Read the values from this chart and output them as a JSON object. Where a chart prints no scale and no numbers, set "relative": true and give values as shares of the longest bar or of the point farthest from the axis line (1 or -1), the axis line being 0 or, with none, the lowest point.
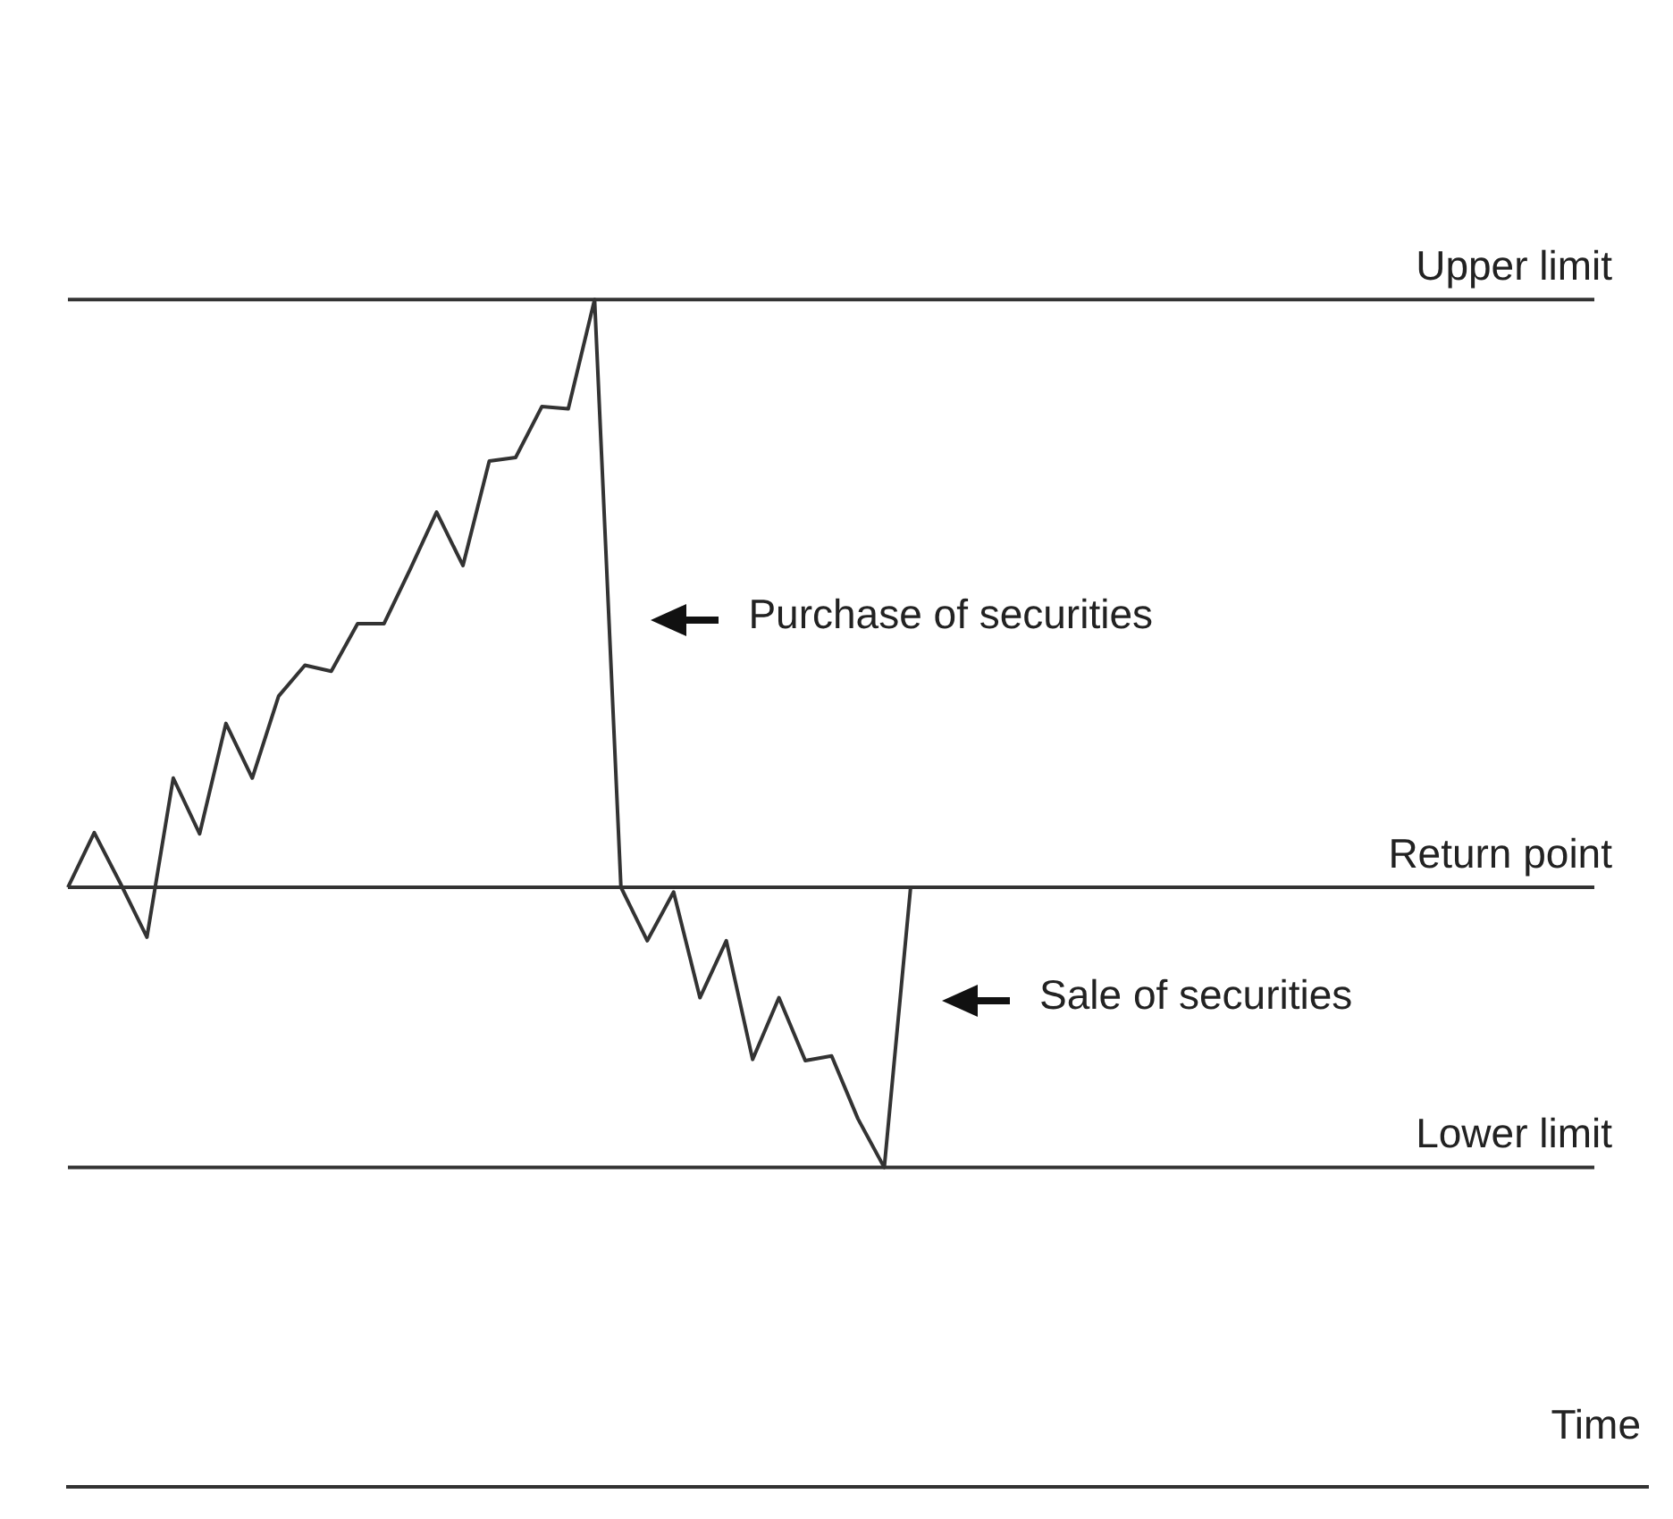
{
  "chart_data": {
    "type": "line",
    "relative": true,
    "xlabel": "Time",
    "marker": "none",
    "categories": [
      null,
      null,
      null,
      null,
      null,
      null,
      null,
      null,
      null,
      null,
      null,
      null,
      null,
      null,
      null,
      null,
      null,
      null,
      null,
      null,
      null,
      null,
      null,
      null,
      null,
      null,
      null,
      null,
      null,
      null,
      null,
      null,
      null,
      null,
      null,
      null,
      null,
      null,
      null,
      null,
      null,
      null,
      null,
      null,
      null,
      null,
      null,
      null,
      null,
      null,
      null,
      null,
      null,
      null,
      null,
      null,
      null,
      null,
      null,
      null,
      null
    ],
    "series": [
      {
        "color": "#333333",
        "values": [
          0.505,
          0.551,
          0.508,
          0.463,
          0.597,
          0.55,
          0.643,
          0.597,
          0.666,
          0.692,
          0.687,
          0.727,
          0.727,
          0.773,
          0.821,
          0.776,
          0.864,
          0.867,
          0.91,
          0.908,
          1.0,
          0.505,
          0.46,
          0.501,
          0.412,
          0.46,
          0.36,
          0.412,
          0.359,
          0.363,
          0.31,
          0.269,
          0.505,
          null,
          null,
          null,
          null,
          null,
          null,
          null,
          null,
          null,
          null,
          null,
          null,
          null,
          null,
          null,
          null,
          null,
          null,
          null,
          null,
          null,
          null,
          null,
          null,
          null,
          null,
          null,
          null
        ]
      }
    ],
    "ref_lines": [
      {
        "axis": "y",
        "value": 1.0,
        "label": "Upper limit",
        "color": "#333333"
      },
      {
        "axis": "y",
        "value": 0.505,
        "label": "Return point",
        "color": "#333333"
      },
      {
        "axis": "y",
        "value": 0.269,
        "label": "Lower limit",
        "color": "#333333"
      }
    ],
    "annotations": [
      "Purchase of securities",
      "Sale of securities"
    ]
  }
}
